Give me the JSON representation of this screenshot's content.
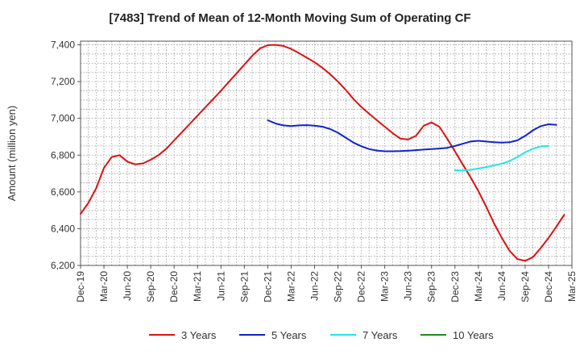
{
  "chart_data": {
    "type": "line",
    "title": "[7483]  Trend of Mean of 12-Month Moving Sum of Operating CF",
    "xlabel": "",
    "ylabel": "Amount (million yen)",
    "ylim": [
      6200,
      7420
    ],
    "yticks": [
      6200,
      6400,
      6600,
      6800,
      7000,
      7200,
      7400
    ],
    "ytick_labels": [
      "6,200",
      "6,400",
      "6,600",
      "6,800",
      "7,000",
      "7,200",
      "7,400"
    ],
    "xtick_labels": [
      "Dec-19",
      "Mar-20",
      "Jun-20",
      "Sep-20",
      "Dec-20",
      "Mar-21",
      "Jun-21",
      "Sep-21",
      "Dec-21",
      "Mar-22",
      "Jun-22",
      "Sep-22",
      "Dec-22",
      "Mar-23",
      "Jun-23",
      "Sep-23",
      "Dec-23",
      "Mar-24",
      "Jun-24",
      "Sep-24",
      "Dec-24",
      "Mar-25"
    ],
    "x_start": "Dec-19",
    "x_end": "Mar-25",
    "grid": true,
    "legend_position": "bottom",
    "series": [
      {
        "name": "3 Years",
        "color": "#dd1111",
        "start": "Dec-19",
        "values": [
          6480,
          6540,
          6620,
          6730,
          6790,
          6800,
          6765,
          6750,
          6755,
          6775,
          6800,
          6835,
          6880,
          6925,
          6970,
          7015,
          7060,
          7105,
          7150,
          7198,
          7245,
          7292,
          7340,
          7380,
          7398,
          7400,
          7394,
          7378,
          7355,
          7330,
          7305,
          7275,
          7240,
          7200,
          7155,
          7105,
          7062,
          7025,
          6990,
          6955,
          6920,
          6890,
          6885,
          6905,
          6960,
          6978,
          6955,
          6890,
          6820,
          6750,
          6680,
          6605,
          6520,
          6430,
          6350,
          6280,
          6235,
          6225,
          6245,
          6295,
          6350,
          6410,
          6475
        ]
      },
      {
        "name": "5 Years",
        "color": "#1122cc",
        "start": "Dec-21",
        "values": [
          6990,
          6972,
          6962,
          6958,
          6962,
          6963,
          6960,
          6955,
          6942,
          6922,
          6895,
          6868,
          6848,
          6833,
          6825,
          6821,
          6821,
          6822,
          6824,
          6827,
          6830,
          6833,
          6836,
          6840,
          6850,
          6862,
          6874,
          6878,
          6874,
          6870,
          6868,
          6870,
          6880,
          6905,
          6935,
          6958,
          6968,
          6965
        ]
      },
      {
        "name": "7 Years",
        "color": "#22e5e5",
        "start": "Dec-23",
        "values": [
          6718,
          6716,
          6720,
          6727,
          6735,
          6744,
          6754,
          6768,
          6790,
          6815,
          6835,
          6848,
          6850
        ]
      },
      {
        "name": "10 Years",
        "color": "#228822",
        "start": "Dec-24",
        "values": []
      }
    ]
  }
}
